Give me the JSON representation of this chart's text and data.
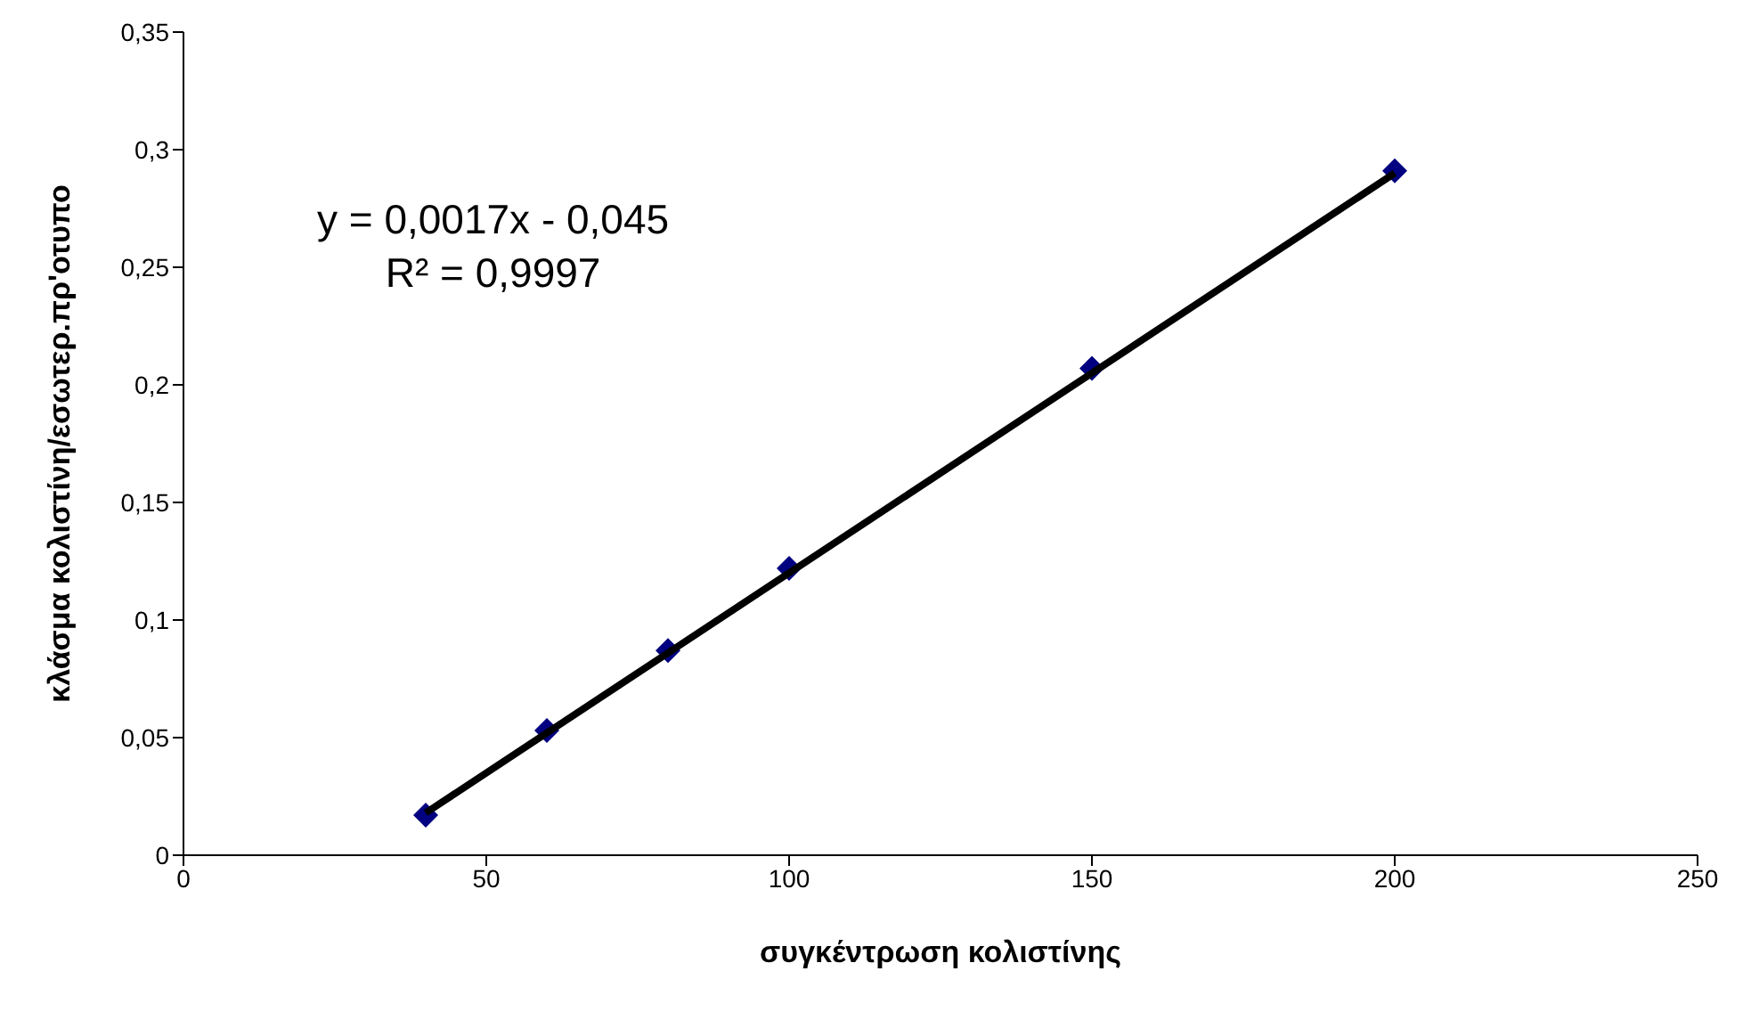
{
  "chart_data": {
    "type": "scatter",
    "xlabel": "συγκέντρωση κολιστίνης",
    "ylabel": "κλάσμα κολιστίνη/εσωτερ.πρ'οτυπο",
    "xlim": [
      0,
      250
    ],
    "xticks": [
      0,
      50,
      100,
      150,
      200,
      250
    ],
    "ylim": [
      0,
      0.35
    ],
    "yticks": [
      0,
      {
        "value": 0.05,
        "label": "0,05"
      },
      {
        "value": 0.1,
        "label": "0,1"
      },
      {
        "value": 0.15,
        "label": "0,15"
      },
      {
        "value": 0.2,
        "label": "0,2"
      },
      {
        "value": 0.25,
        "label": "0,25"
      },
      {
        "value": 0.3,
        "label": "0,3"
      },
      {
        "value": 0.35,
        "label": "0,35"
      }
    ],
    "grid": false,
    "legend": false,
    "marker": "diamond",
    "x": [
      40,
      60,
      80,
      100,
      150,
      200
    ],
    "series": [
      {
        "color": "#000080",
        "values": [
          0.017,
          0.053,
          0.087,
          0.122,
          0.207,
          0.291
        ]
      },
      {
        "type": "line",
        "color": "#000000",
        "x": [
          40,
          200
        ],
        "values": [
          0.018,
          0.29
        ],
        "line_style": "solid",
        "marker": "none"
      }
    ],
    "annotations": [
      "y = 0,0017x - 0,045",
      "R² = 0,9997"
    ]
  }
}
